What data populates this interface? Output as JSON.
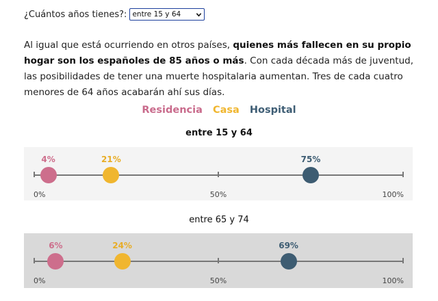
{
  "question": "¿Cuántos años tienes?:",
  "age_select": {
    "selected": "entre 15 y 64"
  },
  "intro": {
    "part1": "Al igual que está ocurriendo en otros países, ",
    "bold": "quienes más fallecen en su propio hogar son los españoles de 85 años o más",
    "part2": ". Con cada década más de juventud, las posibilidades de tener una muerte hospitalaria aumentan. Tres de cada cuatro menores de 64 años acabarán ahí sus días."
  },
  "legend": {
    "residencia": "Residencia",
    "casa": "Casa",
    "hospital": "Hospital"
  },
  "colors": {
    "residencia": "#cd6e8c",
    "casa": "#f0b62f",
    "hospital": "#3d5c72",
    "selected_panel_bg": "#f4f4f4",
    "other_panel_bg": "#d9d9d9"
  },
  "axis_labels": {
    "min": "0%",
    "mid": "50%",
    "max": "100%"
  },
  "chart_data": [
    {
      "type": "scatter",
      "title": "entre 15 y 64",
      "xlim": [
        0,
        100
      ],
      "x_unit": "%",
      "series": [
        {
          "name": "Residencia",
          "value": 4,
          "label": "4%"
        },
        {
          "name": "Casa",
          "value": 21,
          "label": "21%"
        },
        {
          "name": "Hospital",
          "value": 75,
          "label": "75%"
        }
      ]
    },
    {
      "type": "scatter",
      "title": "entre 65 y 74",
      "xlim": [
        0,
        100
      ],
      "x_unit": "%",
      "series": [
        {
          "name": "Residencia",
          "value": 6,
          "label": "6%"
        },
        {
          "name": "Casa",
          "value": 24,
          "label": "24%"
        },
        {
          "name": "Hospital",
          "value": 69,
          "label": "69%"
        }
      ]
    }
  ]
}
